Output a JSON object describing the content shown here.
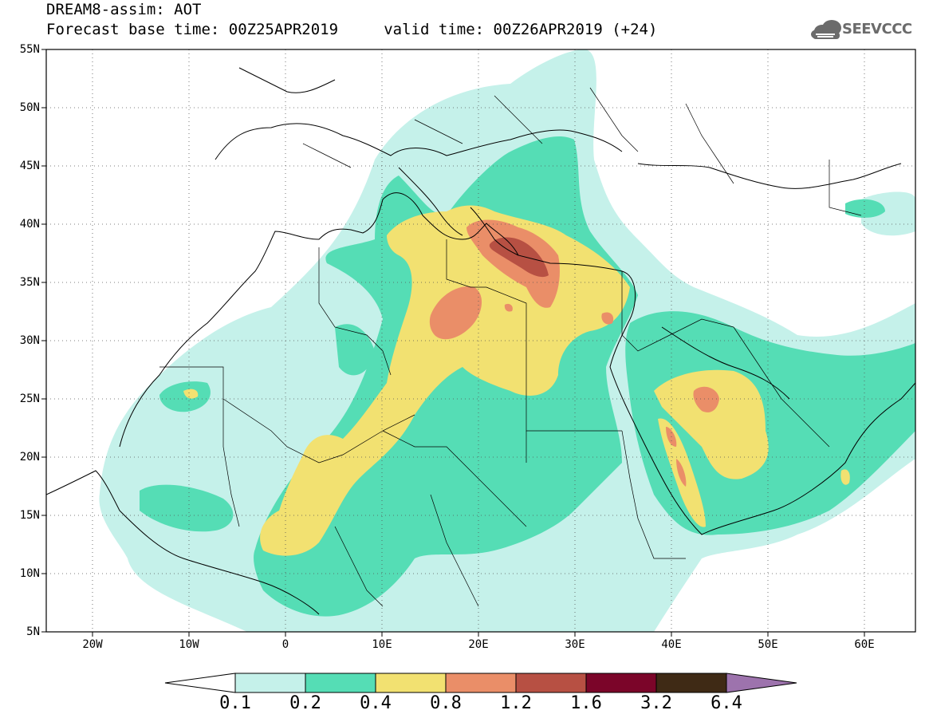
{
  "header": {
    "title_line1": "DREAM8-assim: AOT",
    "title_line2": "Forecast base time: 00Z25APR2019     valid time: 00Z26APR2019 (+24)",
    "logo_text": "SEEVCCC",
    "logo_icon": "cloud-icon"
  },
  "map": {
    "variable": "Aerosol optical thickness",
    "lat_ticks": [
      "55N",
      "50N",
      "45N",
      "40N",
      "35N",
      "30N",
      "25N",
      "20N",
      "15N",
      "10N",
      "5N"
    ],
    "lon_ticks": [
      "20W",
      "10W",
      "0",
      "10E",
      "20E",
      "30E",
      "40E",
      "50E",
      "60E"
    ],
    "lat_range": [
      5,
      55
    ],
    "lon_range": [
      -25,
      65
    ],
    "grid": "dotted",
    "dust_maxima": [
      {
        "region": "Aegean / Greece",
        "level": "1.2-1.6"
      },
      {
        "region": "Libya",
        "level": "0.8-1.2"
      },
      {
        "region": "Central Arabia",
        "level": "0.8-1.2"
      },
      {
        "region": "Red Sea coast",
        "level": "0.8-1.2"
      }
    ]
  },
  "colorbar": {
    "labels": [
      "0.1",
      "0.2",
      "0.4",
      "0.8",
      "1.2",
      "1.6",
      "3.2",
      "6.4"
    ],
    "colors": [
      "#ffffff",
      "#c5f1ea",
      "#55ddb5",
      "#f2e171",
      "#ea8e68",
      "#b75043",
      "#7b0529",
      "#3f2a15",
      "#9d73ad"
    ]
  },
  "colors": {
    "aot_0.1_0.2": "#c5f1ea",
    "aot_0.2_0.4": "#55ddb5",
    "aot_0.4_0.8": "#f2e171",
    "aot_0.8_1.2": "#ea8e68",
    "aot_1.2_1.6": "#b75043",
    "aot_1.6_3.2": "#7b0529",
    "aot_3.2_6.4": "#3f2a15",
    "aot_above_6.4": "#9d73ad"
  }
}
